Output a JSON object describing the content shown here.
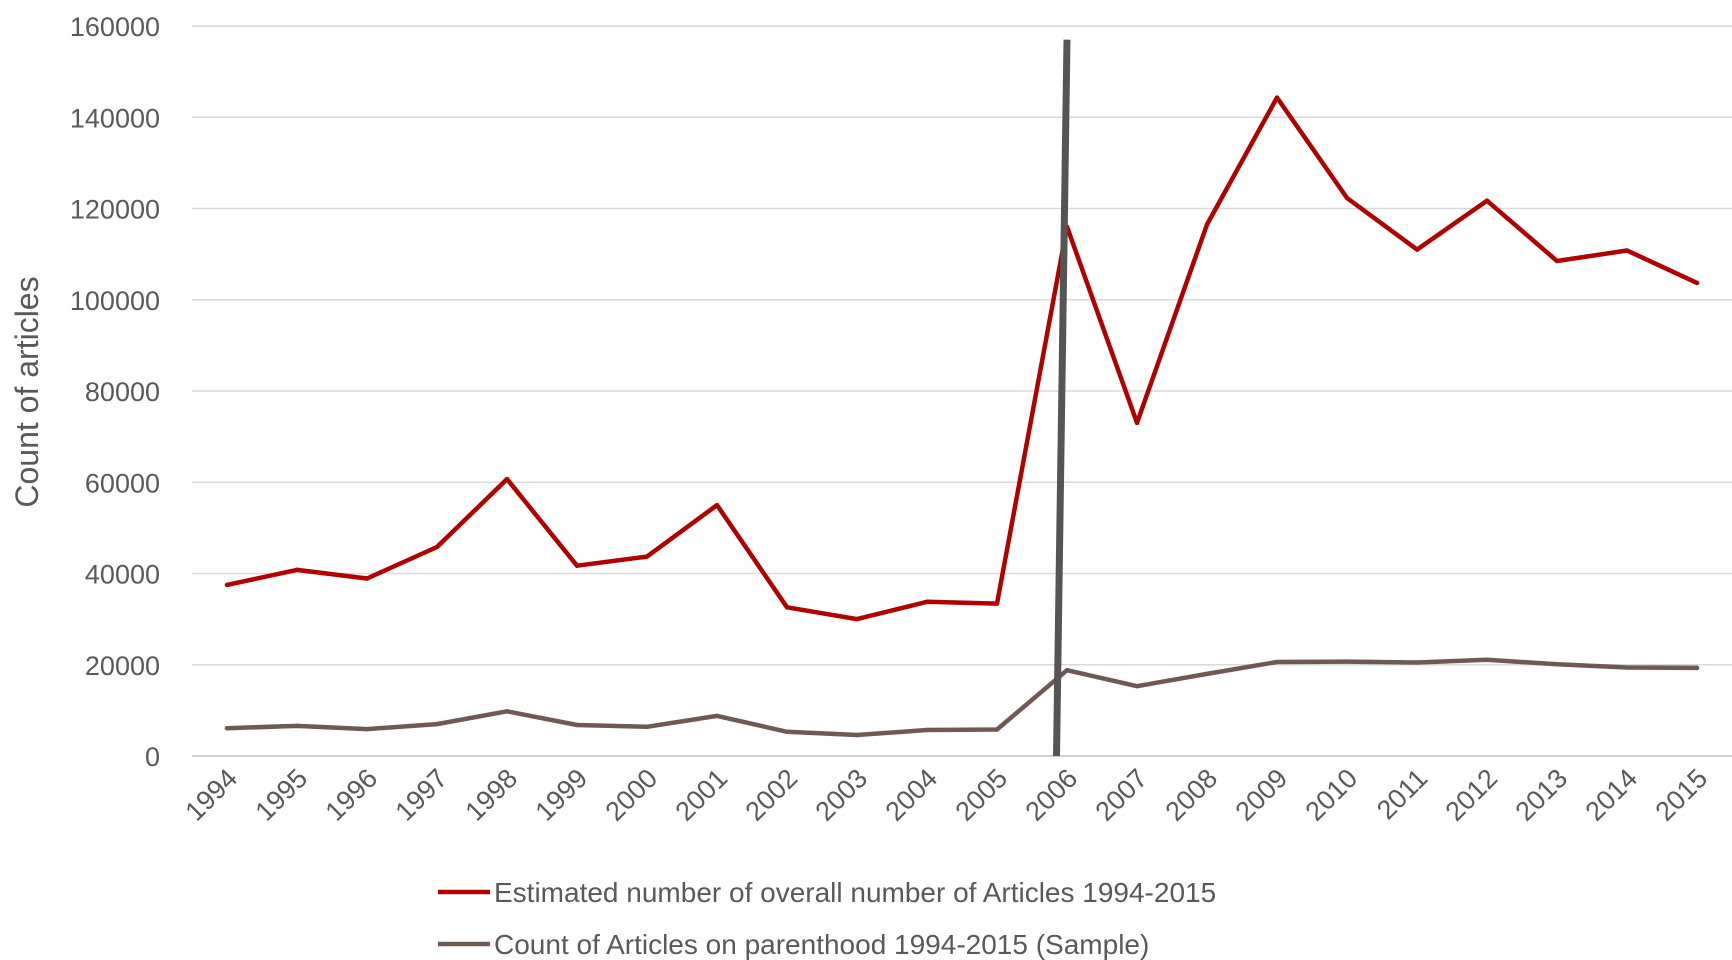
{
  "chart_data": {
    "type": "line",
    "title": "",
    "xlabel": "",
    "ylabel": "Count of articles",
    "ylim": [
      0,
      160000
    ],
    "yticks": [
      "0",
      "20000",
      "40000",
      "60000",
      "80000",
      "100000",
      "120000",
      "140000",
      "160000"
    ],
    "grid": "horizontal",
    "legend_position": "bottom",
    "x": [
      "1994",
      "1995",
      "1996",
      "1997",
      "1998",
      "1999",
      "2000",
      "2001",
      "2002",
      "2003",
      "2004",
      "2005",
      "2006",
      "2007",
      "2008",
      "2009",
      "2010",
      "2011",
      "2012",
      "2013",
      "2014",
      "2015"
    ],
    "series": [
      {
        "name": "Estimated number of overall number of Articles 1994-2015",
        "color": "#b00000",
        "values": [
          37500,
          40800,
          38900,
          45800,
          60700,
          41700,
          43700,
          55000,
          32600,
          30000,
          33800,
          33400,
          116000,
          73000,
          116500,
          144300,
          122300,
          111000,
          121700,
          108500,
          110800,
          103700
        ]
      },
      {
        "name": "Count of Articles on parenthood 1994-2015 (Sample)",
        "color": "#6f5a53",
        "values": [
          6100,
          6600,
          5900,
          7000,
          9800,
          6800,
          6400,
          8800,
          5300,
          4600,
          5700,
          5800,
          18800,
          15300,
          18000,
          20600,
          20700,
          20500,
          21100,
          20100,
          19400,
          19300
        ]
      }
    ],
    "annotation": {
      "type": "vertical-line",
      "color": "#555555",
      "x_top": "2006",
      "y_top": 157000,
      "x_bottom": "2005.85",
      "y_bottom": 0
    }
  }
}
